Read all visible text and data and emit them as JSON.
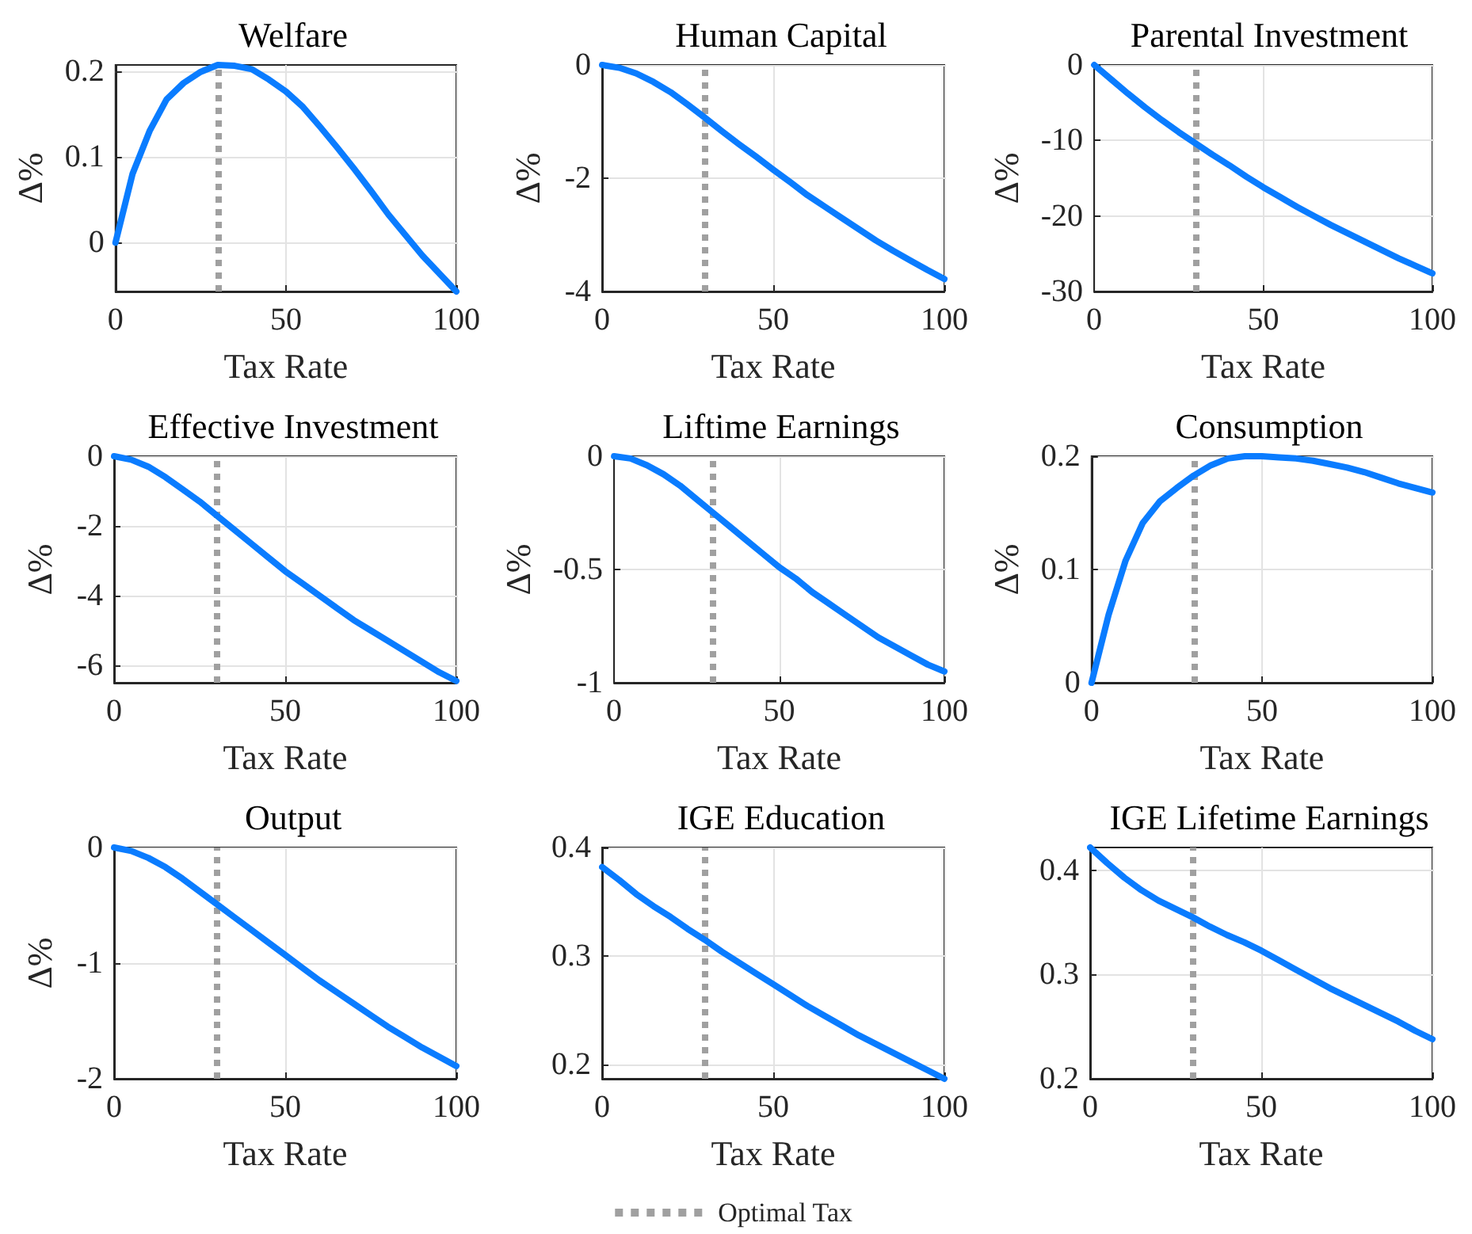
{
  "chart_data": [
    {
      "type": "line",
      "title": "Welfare",
      "xlabel": "Tax Rate",
      "ylabel": "Δ%",
      "x": [
        0,
        5,
        10,
        15,
        20,
        25,
        30,
        35,
        40,
        45,
        50,
        55,
        60,
        65,
        70,
        75,
        80,
        85,
        90,
        95,
        100
      ],
      "values": [
        0,
        0.08,
        0.13,
        0.167,
        0.186,
        0.199,
        0.207,
        0.206,
        0.202,
        0.19,
        0.176,
        0.158,
        0.135,
        0.111,
        0.086,
        0.06,
        0.033,
        0.009,
        -0.015,
        -0.036,
        -0.057
      ],
      "color": "#0a7cff",
      "xlim": [
        0,
        100
      ],
      "ylim": [
        -0.057,
        0.207
      ],
      "xticks": [
        0,
        50,
        100
      ],
      "yticks": [
        0,
        0.1,
        0.2
      ],
      "grid": true,
      "marker": "none",
      "ref_lines": [
        {
          "axis": "x",
          "value": 30,
          "color": "#a0a0a0",
          "line_style": "dotted"
        }
      ]
    },
    {
      "type": "line",
      "title": "Human Capital",
      "xlabel": "Tax Rate",
      "ylabel": "Δ%",
      "x": [
        0,
        5,
        10,
        15,
        20,
        25,
        30,
        35,
        40,
        45,
        50,
        55,
        60,
        65,
        70,
        75,
        80,
        85,
        90,
        95,
        100
      ],
      "values": [
        0,
        -0.05,
        -0.15,
        -0.3,
        -0.48,
        -0.7,
        -0.93,
        -1.17,
        -1.4,
        -1.62,
        -1.85,
        -2.07,
        -2.3,
        -2.5,
        -2.7,
        -2.9,
        -3.1,
        -3.28,
        -3.45,
        -3.62,
        -3.78
      ],
      "color": "#0a7cff",
      "xlim": [
        0,
        100
      ],
      "ylim": [
        -4,
        0
      ],
      "xticks": [
        0,
        50,
        100
      ],
      "yticks": [
        -4,
        -2,
        0
      ],
      "grid": true,
      "marker": "none",
      "ref_lines": [
        {
          "axis": "x",
          "value": 30,
          "color": "#a0a0a0",
          "line_style": "dotted"
        }
      ]
    },
    {
      "type": "line",
      "title": "Parental Investment",
      "xlabel": "Tax Rate",
      "ylabel": "Δ%",
      "x": [
        0,
        5,
        10,
        15,
        20,
        25,
        30,
        35,
        40,
        45,
        50,
        55,
        60,
        65,
        70,
        75,
        80,
        85,
        90,
        95,
        100
      ],
      "values": [
        0,
        -1.9,
        -3.8,
        -5.6,
        -7.3,
        -8.9,
        -10.4,
        -11.9,
        -13.3,
        -14.8,
        -16.2,
        -17.5,
        -18.8,
        -20,
        -21.2,
        -22.3,
        -23.4,
        -24.5,
        -25.6,
        -26.6,
        -27.6
      ],
      "color": "#0a7cff",
      "xlim": [
        0,
        100
      ],
      "ylim": [
        -30,
        0
      ],
      "xticks": [
        0,
        50,
        100
      ],
      "yticks": [
        -30,
        -20,
        -10,
        0
      ],
      "grid": true,
      "marker": "none",
      "ref_lines": [
        {
          "axis": "x",
          "value": 30,
          "color": "#a0a0a0",
          "line_style": "dotted"
        }
      ]
    },
    {
      "type": "line",
      "title": "Effective Investment",
      "xlabel": "Tax Rate",
      "ylabel": "Δ%",
      "x": [
        0,
        5,
        10,
        15,
        20,
        25,
        30,
        35,
        40,
        45,
        50,
        55,
        60,
        65,
        70,
        75,
        80,
        85,
        90,
        95,
        100
      ],
      "values": [
        0,
        -0.1,
        -0.3,
        -0.6,
        -0.95,
        -1.3,
        -1.7,
        -2.1,
        -2.5,
        -2.9,
        -3.3,
        -3.65,
        -4,
        -4.35,
        -4.7,
        -5,
        -5.3,
        -5.6,
        -5.9,
        -6.2,
        -6.45
      ],
      "color": "#0a7cff",
      "xlim": [
        0,
        100
      ],
      "ylim": [
        -6.5,
        0
      ],
      "xticks": [
        0,
        50,
        100
      ],
      "yticks": [
        -6,
        -4,
        -2,
        0
      ],
      "grid": true,
      "marker": "none",
      "ref_lines": [
        {
          "axis": "x",
          "value": 30,
          "color": "#a0a0a0",
          "line_style": "dotted"
        }
      ]
    },
    {
      "type": "line",
      "title": "Liftime Earnings",
      "xlabel": "Tax Rate",
      "ylabel": "Δ%",
      "x": [
        0,
        5,
        10,
        15,
        20,
        25,
        30,
        35,
        40,
        45,
        50,
        55,
        60,
        65,
        70,
        75,
        80,
        85,
        90,
        95,
        100
      ],
      "values": [
        0,
        -0.01,
        -0.04,
        -0.08,
        -0.13,
        -0.19,
        -0.25,
        -0.31,
        -0.37,
        -0.43,
        -0.49,
        -0.54,
        -0.6,
        -0.65,
        -0.7,
        -0.75,
        -0.8,
        -0.84,
        -0.88,
        -0.92,
        -0.95
      ],
      "color": "#0a7cff",
      "xlim": [
        0,
        100
      ],
      "ylim": [
        -1,
        0
      ],
      "xticks": [
        0,
        50,
        100
      ],
      "yticks": [
        -1,
        -0.5,
        0
      ],
      "grid": true,
      "marker": "none",
      "ref_lines": [
        {
          "axis": "x",
          "value": 30,
          "color": "#a0a0a0",
          "line_style": "dotted"
        }
      ]
    },
    {
      "type": "line",
      "title": "Consumption",
      "xlabel": "Tax Rate",
      "ylabel": "Δ%",
      "x": [
        0,
        5,
        10,
        15,
        20,
        25,
        30,
        35,
        40,
        45,
        50,
        55,
        60,
        65,
        70,
        75,
        80,
        85,
        90,
        95,
        100
      ],
      "values": [
        0,
        0.06,
        0.108,
        0.141,
        0.16,
        0.172,
        0.183,
        0.192,
        0.198,
        0.2,
        0.2,
        0.199,
        0.198,
        0.196,
        0.193,
        0.19,
        0.186,
        0.181,
        0.176,
        0.172,
        0.168
      ],
      "color": "#0a7cff",
      "xlim": [
        0,
        100
      ],
      "ylim": [
        0,
        0.2
      ],
      "xticks": [
        0,
        50,
        100
      ],
      "yticks": [
        0,
        0.1,
        0.2
      ],
      "grid": true,
      "marker": "none",
      "ref_lines": [
        {
          "axis": "x",
          "value": 30,
          "color": "#a0a0a0",
          "line_style": "dotted"
        }
      ]
    },
    {
      "type": "line",
      "title": "Output",
      "xlabel": "Tax Rate",
      "ylabel": "Δ%",
      "x": [
        0,
        5,
        10,
        15,
        20,
        25,
        30,
        35,
        40,
        45,
        50,
        55,
        60,
        65,
        70,
        75,
        80,
        85,
        90,
        95,
        100
      ],
      "values": [
        0,
        -0.03,
        -0.09,
        -0.17,
        -0.27,
        -0.38,
        -0.49,
        -0.6,
        -0.71,
        -0.82,
        -0.93,
        -1.04,
        -1.15,
        -1.25,
        -1.35,
        -1.45,
        -1.55,
        -1.64,
        -1.73,
        -1.81,
        -1.89
      ],
      "color": "#0a7cff",
      "xlim": [
        0,
        100
      ],
      "ylim": [
        -2,
        0
      ],
      "xticks": [
        0,
        50,
        100
      ],
      "yticks": [
        -2,
        -1,
        0
      ],
      "grid": true,
      "marker": "none",
      "ref_lines": [
        {
          "axis": "x",
          "value": 30,
          "color": "#a0a0a0",
          "line_style": "dotted"
        }
      ]
    },
    {
      "type": "line",
      "title": "IGE Education",
      "xlabel": "Tax Rate",
      "x": [
        0,
        5,
        10,
        15,
        20,
        25,
        30,
        35,
        40,
        45,
        50,
        55,
        60,
        65,
        70,
        75,
        80,
        85,
        90,
        95,
        100
      ],
      "values": [
        0.382,
        0.37,
        0.357,
        0.346,
        0.336,
        0.325,
        0.315,
        0.304,
        0.294,
        0.284,
        0.274,
        0.264,
        0.254,
        0.245,
        0.236,
        0.227,
        0.219,
        0.211,
        0.203,
        0.195,
        0.187
      ],
      "color": "#0a7cff",
      "xlim": [
        0,
        100
      ],
      "ylim": [
        0.187,
        0.4
      ],
      "xticks": [
        0,
        50,
        100
      ],
      "yticks": [
        0.2,
        0.3,
        0.4
      ],
      "grid": true,
      "marker": "none",
      "legend": "bottom",
      "ref_lines": [
        {
          "axis": "x",
          "value": 30,
          "label": "Optimal Tax",
          "color": "#a0a0a0",
          "line_style": "dotted"
        }
      ]
    },
    {
      "type": "line",
      "title": "IGE Lifetime Earnings",
      "xlabel": "Tax Rate",
      "x": [
        0,
        5,
        10,
        15,
        20,
        25,
        30,
        35,
        40,
        45,
        50,
        55,
        60,
        65,
        70,
        75,
        80,
        85,
        90,
        95,
        100
      ],
      "values": [
        0.422,
        0.407,
        0.393,
        0.381,
        0.371,
        0.363,
        0.355,
        0.346,
        0.338,
        0.331,
        0.323,
        0.314,
        0.305,
        0.296,
        0.287,
        0.279,
        0.271,
        0.263,
        0.255,
        0.246,
        0.238
      ],
      "color": "#0a7cff",
      "xlim": [
        0,
        100
      ],
      "ylim": [
        0.2,
        0.422
      ],
      "xticks": [
        0,
        50,
        100
      ],
      "yticks": [
        0.2,
        0.3,
        0.4
      ],
      "grid": true,
      "marker": "none",
      "ref_lines": [
        {
          "axis": "x",
          "value": 30,
          "color": "#a0a0a0",
          "line_style": "dotted"
        }
      ]
    }
  ]
}
